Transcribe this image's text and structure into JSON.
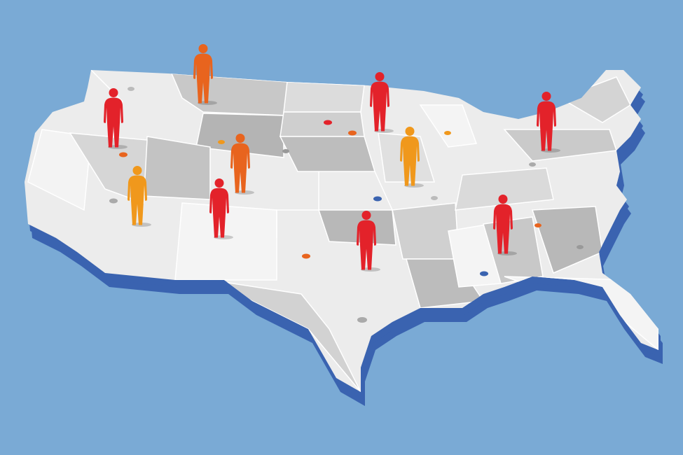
{
  "figures": [
    {
      "color": "#e8641e"
    },
    {
      "color": "#e3222a"
    },
    {
      "color": "#e3222a"
    },
    {
      "color": "#e3222a"
    },
    {
      "color": "#e8641e"
    },
    {
      "color": "#f0981c"
    },
    {
      "color": "#f0981c"
    },
    {
      "color": "#e3222a"
    },
    {
      "color": "#e3222a"
    },
    {
      "color": "#e3222a"
    }
  ]
}
